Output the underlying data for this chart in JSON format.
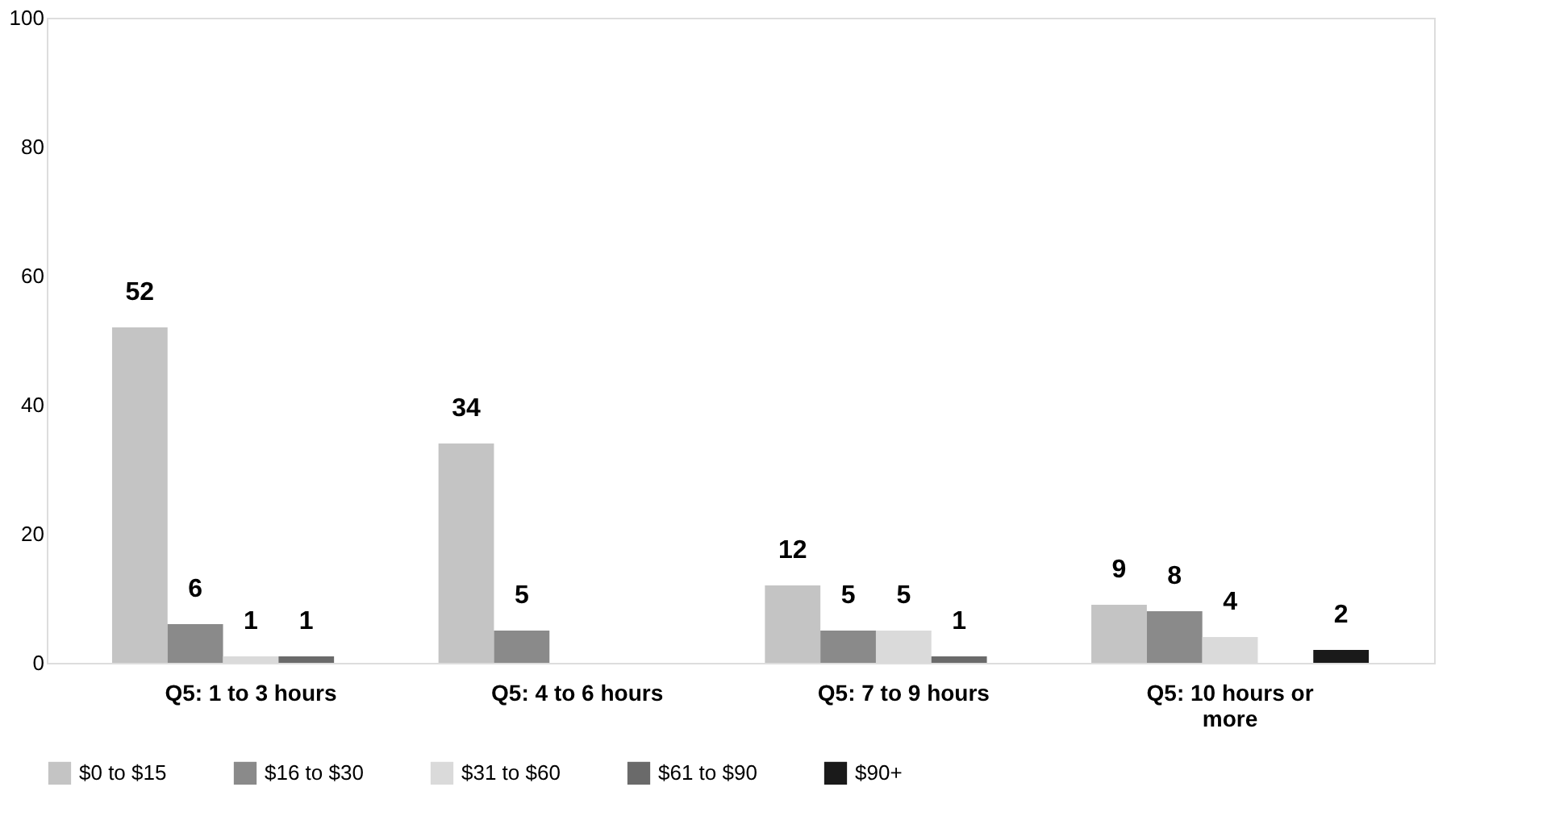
{
  "chart_data": {
    "type": "bar",
    "categories": [
      "Q5: 1 to 3 hours",
      "Q5: 4 to 6 hours",
      "Q5: 7 to 9 hours",
      "Q5: 10 hours or more"
    ],
    "series": [
      {
        "name": "$0 to $15",
        "color": "#c4c4c4",
        "values": [
          52,
          34,
          12,
          9
        ]
      },
      {
        "name": "$16 to $30",
        "color": "#8a8a8a",
        "values": [
          6,
          5,
          5,
          8
        ]
      },
      {
        "name": "$31 to $60",
        "color": "#dadada",
        "values": [
          1,
          null,
          5,
          4
        ]
      },
      {
        "name": "$61 to $90",
        "color": "#6a6a6a",
        "values": [
          1,
          null,
          1,
          null
        ]
      },
      {
        "name": "$90+",
        "color": "#1a1a1a",
        "values": [
          null,
          null,
          null,
          2
        ]
      }
    ],
    "ylim": [
      0,
      100
    ],
    "yticks": [
      0,
      20,
      40,
      60,
      80,
      100
    ],
    "grid": false,
    "legend": "bottom",
    "data_labels": true
  }
}
